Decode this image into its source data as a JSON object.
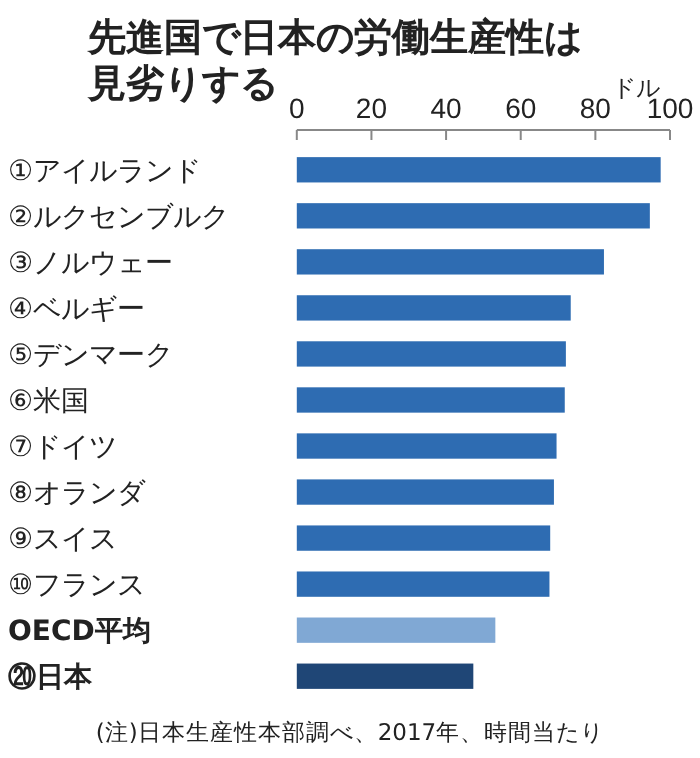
{
  "chart_data": {
    "type": "bar",
    "orientation": "horizontal",
    "title": "先進国で日本の労働生産性は見劣りする",
    "xlabel": "ドル",
    "categories": [
      "①アイルランド",
      "②ルクセンブルク",
      "③ノルウェー",
      "④ベルギー",
      "⑤デンマーク",
      "⑥米国",
      "⑦ドイツ",
      "⑧オランダ",
      "⑨スイス",
      "⑩フランス",
      "OECD平均",
      "⑳日本"
    ],
    "values": [
      97.5,
      94.6,
      82.3,
      73.4,
      72.1,
      71.8,
      69.6,
      68.9,
      67.9,
      67.7,
      53.2,
      47.3
    ],
    "colors": [
      "#2e6cb2",
      "#2e6cb2",
      "#2e6cb2",
      "#2e6cb2",
      "#2e6cb2",
      "#2e6cb2",
      "#2e6cb2",
      "#2e6cb2",
      "#2e6cb2",
      "#2e6cb2",
      "#80a8d4",
      "#1f4676"
    ],
    "xlim": [
      0,
      100
    ],
    "xticks": [
      0,
      20,
      40,
      60,
      80,
      100
    ],
    "annotations": [
      "(注)日本生産性本部調べ、2017年、時間当たり"
    ]
  }
}
